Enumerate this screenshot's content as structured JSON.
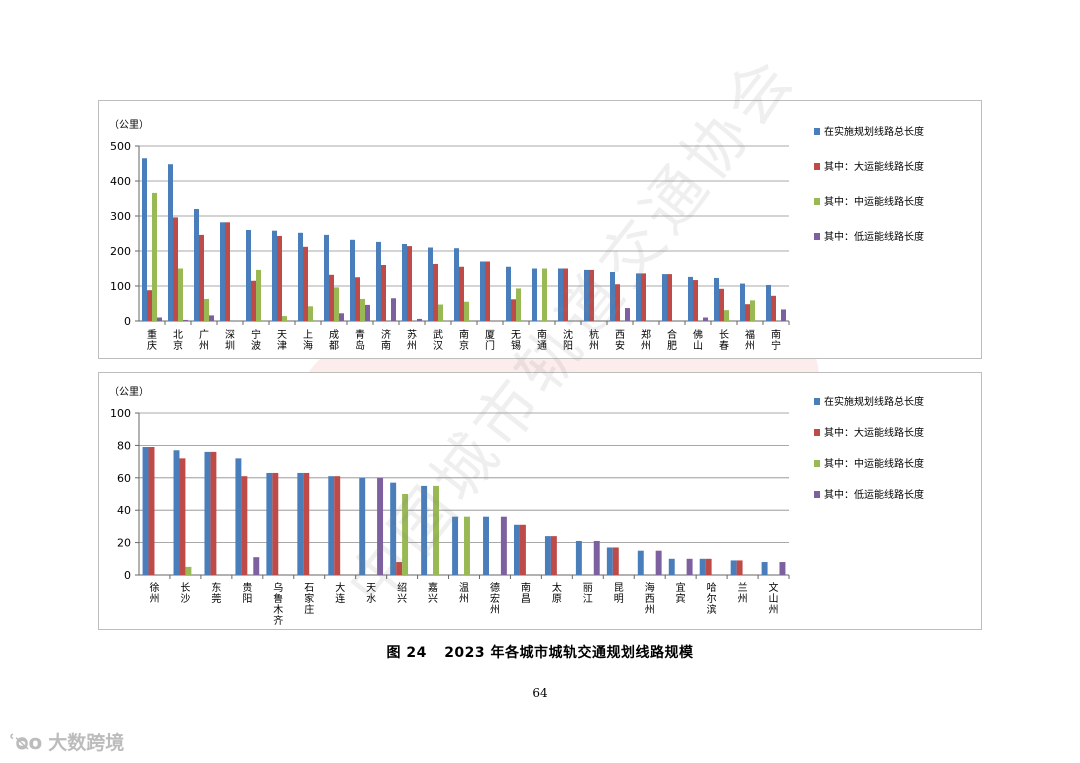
{
  "watermark_text": "中国城市轨道交通协会",
  "caption": {
    "figure_no": "图 24",
    "title": "2023 年各城市城轨交通规划线路规模"
  },
  "page_number": "64",
  "brand": {
    "icon": "logo-icon",
    "text": "大数跨境"
  },
  "colors": {
    "total": "#4a7ebb",
    "large": "#be4b48",
    "medium": "#98b954",
    "low": "#7d60a0"
  },
  "legend_labels": [
    "在实施规划线路总长度",
    "其中：大运能线路长度",
    "其中：中运能线路长度",
    "其中：低运能线路长度"
  ],
  "chart_data": [
    {
      "type": "bar",
      "unit_label": "（公里）",
      "ylim": [
        0,
        500
      ],
      "yticks": [
        0,
        100,
        200,
        300,
        400,
        500
      ],
      "grid": true,
      "legend_position": "right",
      "categories": [
        "重庆",
        "北京",
        "广州",
        "深圳",
        "宁波",
        "天津",
        "上海",
        "成都",
        "青岛",
        "济南",
        "苏州",
        "武汉",
        "南京",
        "厦门",
        "无锡",
        "南通",
        "沈阳",
        "杭州",
        "西安",
        "郑州",
        "合肥",
        "佛山",
        "长春",
        "福州",
        "南宁"
      ],
      "series": [
        {
          "name": "在实施规划线路总长度",
          "values": [
            465,
            448,
            320,
            282,
            260,
            258,
            252,
            246,
            232,
            226,
            220,
            210,
            208,
            170,
            155,
            150,
            150,
            146,
            140,
            136,
            134,
            126,
            123,
            107,
            103
          ]
        },
        {
          "name": "其中：大运能线路长度",
          "values": [
            88,
            296,
            246,
            282,
            115,
            243,
            212,
            132,
            125,
            160,
            214,
            163,
            155,
            170,
            62,
            0,
            150,
            146,
            105,
            136,
            134,
            117,
            92,
            48,
            72
          ]
        },
        {
          "name": "其中：中运能线路长度",
          "values": [
            366,
            150,
            63,
            0,
            146,
            14,
            42,
            96,
            63,
            0,
            0,
            47,
            55,
            0,
            93,
            150,
            0,
            0,
            0,
            0,
            0,
            0,
            31,
            59,
            0
          ]
        },
        {
          "name": "其中：低运能线路长度",
          "values": [
            10,
            3,
            16,
            0,
            0,
            0,
            0,
            22,
            46,
            65,
            6,
            0,
            0,
            0,
            0,
            0,
            0,
            0,
            37,
            0,
            0,
            10,
            0,
            0,
            33
          ]
        }
      ]
    },
    {
      "type": "bar",
      "unit_label": "（公里）",
      "ylim": [
        0,
        100
      ],
      "yticks": [
        0,
        20,
        40,
        60,
        80,
        100
      ],
      "grid": true,
      "legend_position": "right",
      "categories": [
        "徐州",
        "长沙",
        "东莞",
        "贵阳",
        "乌鲁木齐",
        "石家庄",
        "大连",
        "天水",
        "绍兴",
        "嘉兴",
        "温州",
        "德宏州",
        "南昌",
        "太原",
        "丽江",
        "昆明",
        "海西州",
        "宜宾",
        "哈尔滨",
        "兰州",
        "文山州"
      ],
      "series": [
        {
          "name": "在实施规划线路总长度",
          "values": [
            79,
            77,
            76,
            72,
            63,
            63,
            61,
            60,
            57,
            55,
            36,
            36,
            31,
            24,
            21,
            17,
            15,
            10,
            10,
            9,
            8
          ]
        },
        {
          "name": "其中：大运能线路长度",
          "values": [
            79,
            72,
            76,
            61,
            63,
            63,
            61,
            0,
            8,
            0,
            0,
            0,
            31,
            24,
            0,
            17,
            0,
            0,
            10,
            9,
            0
          ]
        },
        {
          "name": "其中：中运能线路长度",
          "values": [
            0,
            5,
            0,
            0,
            0,
            0,
            0,
            0,
            50,
            55,
            36,
            0,
            0,
            0,
            0,
            0,
            0,
            0,
            0,
            0,
            0
          ]
        },
        {
          "name": "其中：低运能线路长度",
          "values": [
            0,
            0,
            0,
            11,
            0,
            0,
            0,
            60,
            0,
            0,
            0,
            36,
            0,
            0,
            21,
            0,
            15,
            10,
            0,
            0,
            8
          ]
        }
      ]
    }
  ]
}
